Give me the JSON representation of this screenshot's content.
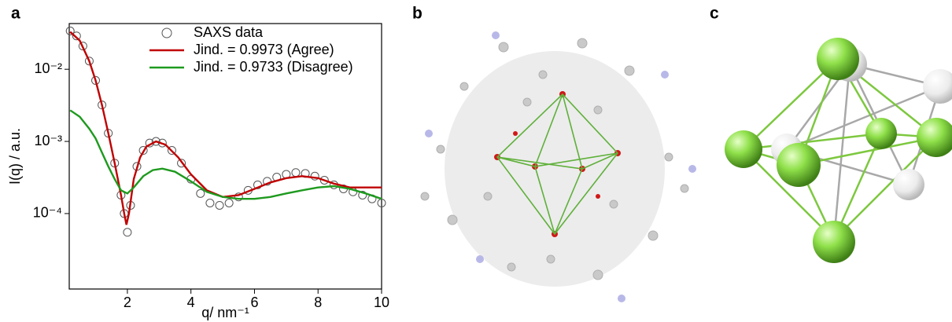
{
  "panels": {
    "a": "a",
    "b": "b",
    "c": "c"
  },
  "chart_data": {
    "type": "line",
    "x_label": "q/ nm⁻¹",
    "y_label": "I(q) / a.u.",
    "xlim": [
      0.17,
      10
    ],
    "ylim": [
      9e-06,
      0.043
    ],
    "y_log": true,
    "xticks": [
      2,
      4,
      6,
      8,
      10
    ],
    "yticks": [
      {
        "value": 0.0001,
        "label": "10⁻⁴"
      },
      {
        "value": 0.001,
        "label": "10⁻³"
      },
      {
        "value": 0.01,
        "label": "10⁻²"
      }
    ],
    "legend": "upper right",
    "series": [
      {
        "name": "SAXS data",
        "kind": "scatter",
        "color": "#555555",
        "x": [
          0.2,
          0.4,
          0.6,
          0.8,
          1.0,
          1.2,
          1.4,
          1.6,
          1.8,
          1.9,
          2.0,
          2.1,
          2.3,
          2.5,
          2.7,
          2.9,
          3.1,
          3.4,
          3.7,
          4.0,
          4.3,
          4.6,
          4.9,
          5.2,
          5.5,
          5.8,
          6.1,
          6.4,
          6.7,
          7.0,
          7.3,
          7.6,
          7.9,
          8.2,
          8.5,
          8.8,
          9.1,
          9.4,
          9.7,
          10
        ],
        "values": [
          0.034,
          0.029,
          0.021,
          0.013,
          0.007,
          0.0032,
          0.0013,
          0.0005,
          0.00018,
          0.0001,
          5.5e-05,
          0.00013,
          0.00045,
          0.00075,
          0.00095,
          0.001,
          0.00095,
          0.00075,
          0.0005,
          0.0003,
          0.00019,
          0.00014,
          0.00013,
          0.00014,
          0.00017,
          0.00021,
          0.00025,
          0.00028,
          0.00032,
          0.00035,
          0.00037,
          0.00036,
          0.00033,
          0.00029,
          0.00025,
          0.00022,
          0.0002,
          0.00018,
          0.00016,
          0.00014
        ]
      },
      {
        "name": "Jind. = 0.9973 (Agree)",
        "kind": "line",
        "color": "#c00000",
        "x": [
          0.2,
          0.5,
          0.8,
          1.0,
          1.2,
          1.4,
          1.6,
          1.8,
          1.9,
          1.97,
          2.05,
          2.2,
          2.4,
          2.6,
          2.9,
          3.2,
          3.6,
          4.0,
          4.5,
          5.0,
          5.5,
          6.0,
          6.5,
          7.0,
          7.5,
          8.0,
          8.5,
          9.0,
          9.5,
          10
        ],
        "values": [
          0.033,
          0.025,
          0.013,
          0.007,
          0.0032,
          0.0013,
          0.0005,
          0.00018,
          0.0001,
          7e-05,
          0.0001,
          0.0003,
          0.0006,
          0.00085,
          0.001,
          0.0009,
          0.0006,
          0.00035,
          0.00021,
          0.00017,
          0.00018,
          0.00022,
          0.00027,
          0.00031,
          0.00033,
          0.00031,
          0.00026,
          0.00023,
          0.00023,
          0.00023
        ]
      },
      {
        "name": "Jind. = 0.9733 (Disagree)",
        "kind": "line",
        "color": "#1e9a1e",
        "x": [
          0.2,
          0.5,
          0.8,
          1.0,
          1.2,
          1.4,
          1.6,
          1.8,
          2.0,
          2.2,
          2.5,
          2.8,
          3.1,
          3.5,
          4.0,
          4.5,
          5.0,
          5.5,
          6.0,
          6.5,
          7.0,
          7.5,
          8.0,
          8.5,
          9.0,
          9.5,
          10
        ],
        "values": [
          0.0027,
          0.0022,
          0.0015,
          0.0011,
          0.0007,
          0.00045,
          0.0003,
          0.00021,
          0.00019,
          0.00023,
          0.00033,
          0.0004,
          0.00042,
          0.00038,
          0.00028,
          0.0002,
          0.00017,
          0.00016,
          0.00016,
          0.00017,
          0.00019,
          0.00021,
          0.00023,
          0.00024,
          0.00022,
          0.00019,
          0.00016
        ]
      }
    ]
  }
}
